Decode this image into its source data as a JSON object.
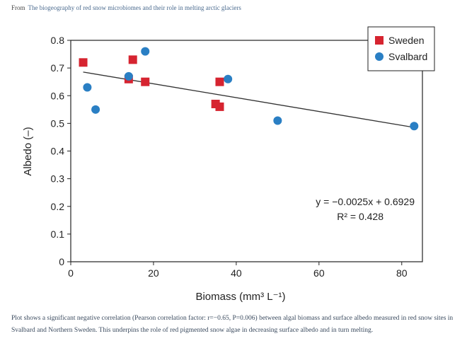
{
  "source": {
    "prefix": "From",
    "title": "The biogeography of red snow microbiomes and their role in melting arctic glaciers"
  },
  "chart_data": {
    "type": "scatter",
    "xlabel": "Biomass (mm³ L⁻¹)",
    "ylabel": "Albedo (–)",
    "xlim": [
      0,
      85
    ],
    "ylim": [
      0,
      0.8
    ],
    "x_ticks": [
      0,
      20,
      40,
      60,
      80
    ],
    "y_ticks": [
      0,
      0.1,
      0.2,
      0.3,
      0.4,
      0.5,
      0.6,
      0.7,
      0.8
    ],
    "grid": false,
    "legend_position": "top-right",
    "series": [
      {
        "name": "Sweden",
        "marker": "square",
        "color": "#d62430",
        "points": [
          {
            "x": 3,
            "y": 0.72
          },
          {
            "x": 14,
            "y": 0.66
          },
          {
            "x": 15,
            "y": 0.73
          },
          {
            "x": 18,
            "y": 0.65
          },
          {
            "x": 35,
            "y": 0.57
          },
          {
            "x": 36,
            "y": 0.56
          },
          {
            "x": 36,
            "y": 0.65
          }
        ]
      },
      {
        "name": "Svalbard",
        "marker": "circle",
        "color": "#2a7fc4",
        "points": [
          {
            "x": 4,
            "y": 0.63
          },
          {
            "x": 6,
            "y": 0.55
          },
          {
            "x": 14,
            "y": 0.67
          },
          {
            "x": 18,
            "y": 0.76
          },
          {
            "x": 38,
            "y": 0.66
          },
          {
            "x": 50,
            "y": 0.51
          },
          {
            "x": 83,
            "y": 0.49
          }
        ]
      }
    ],
    "trendline": {
      "slope": -0.0025,
      "intercept": 0.6929,
      "x_range": [
        3,
        83
      ]
    },
    "annotation": {
      "equation": "y = −0.0025x + 0.6929",
      "r_squared": "R² = 0.428"
    }
  },
  "caption": "Plot shows a significant negative correlation (Pearson correlation factor: r=−0.65, P=0.006) between algal biomass and surface albedo measured in red snow sites in Svalbard and Northern Sweden. This underpins the role of red pigmented snow algae in decreasing surface albedo and in turn melting."
}
